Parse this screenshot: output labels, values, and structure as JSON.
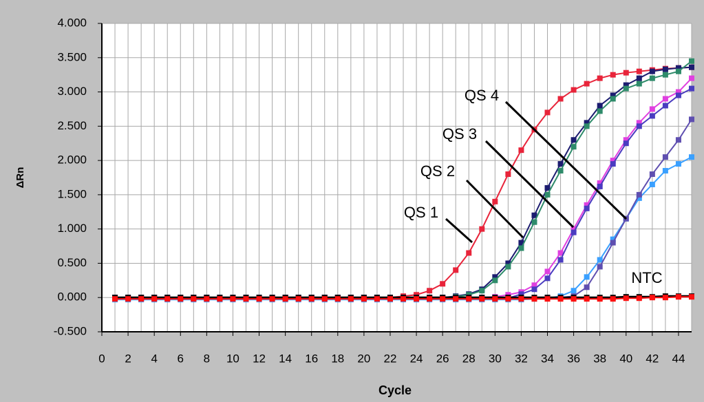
{
  "chart_data": {
    "type": "line",
    "x_label": "Cycle",
    "y_label": "ΔRn",
    "x": [
      1,
      2,
      3,
      4,
      5,
      6,
      7,
      8,
      9,
      10,
      11,
      12,
      13,
      14,
      15,
      16,
      17,
      18,
      19,
      20,
      21,
      22,
      23,
      24,
      25,
      26,
      27,
      28,
      29,
      30,
      31,
      32,
      33,
      34,
      35,
      36,
      37,
      38,
      39,
      40,
      41,
      42,
      43,
      44,
      45
    ],
    "series": [
      {
        "name": "QS 1",
        "color": "#e8243a",
        "values": [
          0,
          0,
          0,
          0,
          0,
          0,
          0,
          -0.01,
          -0.01,
          -0.01,
          -0.01,
          -0.01,
          0,
          0,
          0,
          0,
          0,
          0,
          0,
          0,
          0,
          0,
          0.02,
          0.04,
          0.1,
          0.2,
          0.4,
          0.65,
          1.0,
          1.4,
          1.8,
          2.15,
          2.45,
          2.7,
          2.9,
          3.03,
          3.12,
          3.2,
          3.25,
          3.28,
          3.3,
          3.32,
          3.34,
          3.35,
          3.36
        ]
      },
      {
        "name": "QS 2",
        "color": "#1c1c70",
        "values": [
          -0.02,
          -0.02,
          -0.02,
          -0.02,
          -0.02,
          -0.02,
          -0.02,
          -0.02,
          -0.02,
          -0.02,
          0,
          0,
          0,
          0,
          0,
          0,
          0,
          0,
          0,
          0,
          0,
          0,
          0,
          0,
          0,
          0,
          0.02,
          0.05,
          0.12,
          0.3,
          0.5,
          0.8,
          1.2,
          1.6,
          1.95,
          2.3,
          2.55,
          2.8,
          2.95,
          3.1,
          3.2,
          3.3,
          3.33,
          3.35,
          3.36
        ]
      },
      {
        "color": "#2e8b6a",
        "values": [
          0,
          0,
          0,
          0,
          0,
          0,
          0,
          0,
          0,
          0,
          0,
          0,
          0,
          0,
          0,
          0,
          0,
          0,
          0,
          0,
          0,
          0,
          0,
          0,
          0,
          0,
          0.01,
          0.04,
          0.1,
          0.25,
          0.45,
          0.72,
          1.1,
          1.5,
          1.85,
          2.2,
          2.5,
          2.72,
          2.9,
          3.05,
          3.12,
          3.2,
          3.25,
          3.3,
          3.45
        ]
      },
      {
        "name": "QS 3",
        "color": "#e040e0",
        "values": [
          0,
          0,
          0,
          0,
          0,
          0,
          0,
          0,
          0,
          0,
          0,
          0,
          0,
          0,
          0,
          0,
          0,
          0,
          0,
          0,
          0,
          0,
          0,
          0,
          0,
          0,
          0,
          0,
          0,
          0.01,
          0.04,
          0.08,
          0.18,
          0.38,
          0.65,
          1.0,
          1.35,
          1.67,
          2.0,
          2.3,
          2.55,
          2.75,
          2.9,
          3.0,
          3.2
        ]
      },
      {
        "color": "#4a3cc0",
        "values": [
          -0.02,
          -0.02,
          -0.02,
          -0.02,
          -0.02,
          -0.02,
          -0.02,
          -0.02,
          -0.02,
          -0.02,
          -0.02,
          -0.02,
          -0.02,
          -0.02,
          -0.02,
          -0.02,
          -0.02,
          -0.02,
          -0.02,
          -0.02,
          -0.02,
          -0.02,
          -0.02,
          -0.02,
          -0.02,
          -0.02,
          -0.02,
          -0.02,
          -0.02,
          -0.02,
          -0.01,
          0.05,
          0.12,
          0.28,
          0.55,
          0.95,
          1.3,
          1.62,
          1.95,
          2.25,
          2.5,
          2.65,
          2.8,
          2.95,
          3.05
        ]
      },
      {
        "name": "QS 4",
        "color": "#3aa0ff",
        "values": [
          -0.03,
          -0.03,
          -0.03,
          -0.03,
          -0.03,
          -0.03,
          -0.03,
          -0.03,
          -0.03,
          -0.03,
          -0.03,
          -0.03,
          -0.03,
          -0.03,
          -0.03,
          -0.03,
          -0.03,
          -0.03,
          -0.03,
          -0.03,
          -0.03,
          -0.03,
          -0.03,
          -0.03,
          -0.03,
          -0.03,
          -0.03,
          -0.03,
          -0.03,
          -0.03,
          -0.03,
          -0.03,
          -0.02,
          -0.01,
          0.02,
          0.1,
          0.3,
          0.55,
          0.85,
          1.15,
          1.45,
          1.65,
          1.85,
          1.95,
          2.05
        ]
      },
      {
        "color": "#5f4fb0",
        "values": [
          0,
          0,
          0,
          0,
          0,
          0,
          0,
          0,
          0,
          0,
          0,
          0,
          0,
          0,
          0,
          0,
          0,
          0,
          0,
          0,
          0,
          0,
          0,
          0,
          0,
          0,
          0,
          0,
          0,
          0,
          0,
          0,
          0,
          0,
          0,
          0.02,
          0.15,
          0.45,
          0.8,
          1.15,
          1.5,
          1.8,
          2.05,
          2.3,
          2.6
        ]
      },
      {
        "name": "NTC",
        "color": "#000000",
        "values": [
          0,
          0,
          0,
          0,
          0,
          0,
          0,
          0,
          0,
          0,
          0,
          0,
          0,
          0,
          0,
          0,
          0,
          0,
          0,
          0,
          0,
          0,
          0,
          0,
          0,
          0,
          0,
          0,
          0,
          0,
          0,
          0,
          0,
          0,
          0,
          0,
          0,
          0,
          0,
          0.01,
          0.01,
          0.01,
          0.02,
          0.02,
          0.02
        ]
      },
      {
        "color": "#ff1010",
        "values": [
          -0.02,
          -0.02,
          -0.02,
          -0.02,
          -0.02,
          -0.02,
          -0.02,
          -0.02,
          -0.02,
          -0.02,
          -0.02,
          -0.02,
          -0.02,
          -0.02,
          -0.02,
          -0.02,
          -0.02,
          -0.02,
          -0.02,
          -0.02,
          -0.02,
          -0.02,
          -0.02,
          -0.02,
          -0.02,
          -0.02,
          -0.02,
          -0.02,
          -0.02,
          -0.02,
          -0.02,
          -0.02,
          -0.02,
          -0.02,
          -0.02,
          -0.02,
          -0.02,
          -0.02,
          -0.02,
          -0.01,
          -0.01,
          0,
          0,
          0.01,
          0.01
        ]
      }
    ],
    "xlim": [
      0,
      45
    ],
    "ylim": [
      -0.5,
      4.0
    ],
    "xticks": [
      0,
      2,
      4,
      6,
      8,
      10,
      12,
      14,
      16,
      18,
      20,
      22,
      24,
      26,
      28,
      30,
      32,
      34,
      36,
      38,
      40,
      42,
      44
    ],
    "xminor": [
      1,
      3,
      5,
      7,
      9,
      11,
      13,
      15,
      17,
      19,
      21,
      23,
      25,
      27,
      29,
      31,
      33,
      35,
      37,
      39,
      41,
      43,
      45
    ],
    "yticks": [
      {
        "value": -0.5,
        "label": "-0.500"
      },
      {
        "value": 0,
        "label": "0.000"
      },
      {
        "value": 0.5,
        "label": "0.500"
      },
      {
        "value": 1.0,
        "label": "1.000"
      },
      {
        "value": 1.5,
        "label": "1.500"
      },
      {
        "value": 2.0,
        "label": "2.000"
      },
      {
        "value": 2.5,
        "label": "2.500"
      },
      {
        "value": 3.0,
        "label": "3.000"
      },
      {
        "value": 3.5,
        "label": "3.500"
      },
      {
        "value": 4.0,
        "label": "4.000"
      }
    ],
    "grid": true
  }
}
